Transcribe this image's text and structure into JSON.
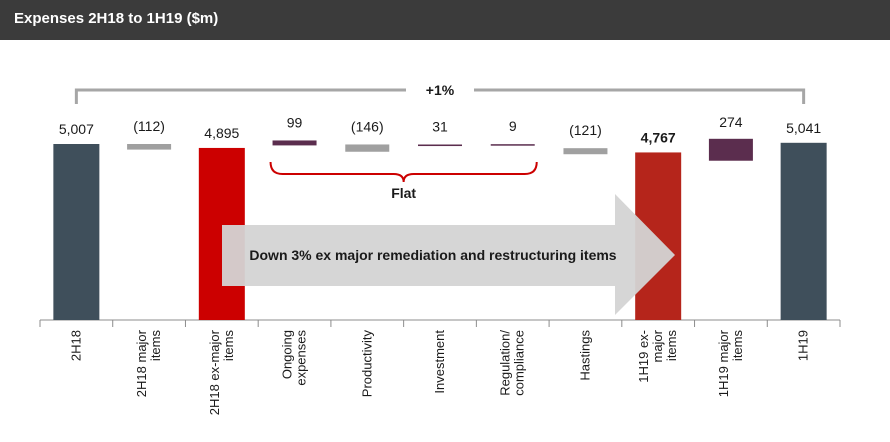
{
  "title": "Expenses 2H18 to 1H19 ($m)",
  "chart_data": {
    "type": "bar",
    "subtype": "waterfall",
    "categories": [
      "2H18",
      "2H18 major items",
      "2H18 ex-major items",
      "Ongoing expenses",
      "Productivity",
      "Investment",
      "Regulation/ compliance",
      "Hastings",
      "1H19 ex-major items",
      "1H19 major items",
      "1H19"
    ],
    "tick_lines": [
      [
        "2H18"
      ],
      [
        "2H18 major",
        "items"
      ],
      [
        "2H18 ex-major",
        "items"
      ],
      [
        "Ongoing",
        "expenses"
      ],
      [
        "Productivity"
      ],
      [
        "Investment"
      ],
      [
        "Regulation/",
        "compliance"
      ],
      [
        "Hastings"
      ],
      [
        "1H19 ex-",
        "major",
        "items"
      ],
      [
        "1H19 major",
        "items"
      ],
      [
        "1H19"
      ]
    ],
    "values": [
      5007,
      -112,
      4895,
      99,
      -146,
      31,
      9,
      -121,
      4767,
      274,
      5041
    ],
    "data_labels": [
      "5,007",
      "(112)",
      "4,895",
      "99",
      "(146)",
      "31",
      "9",
      "(121)",
      "4,767",
      "274",
      "5,041"
    ],
    "bold_labels": [
      false,
      false,
      false,
      false,
      false,
      false,
      false,
      false,
      true,
      false,
      false
    ],
    "kinds": [
      "total",
      "delta",
      "total",
      "delta",
      "delta",
      "delta",
      "delta",
      "delta",
      "total",
      "delta",
      "total"
    ],
    "colors": [
      "#3f4f5b",
      "#a0a0a0",
      "#cc0000",
      "#5b2d4e",
      "#a0a0a0",
      "#5b2d4e",
      "#5b2d4e",
      "#a0a0a0",
      "#b5251b",
      "#5b2d4e",
      "#3f4f5b"
    ],
    "ylim": [
      0,
      5200
    ],
    "xlabel": "",
    "ylabel": "",
    "annotations": {
      "top_bracket_label": "+1%",
      "flat_bracket_label": "Flat",
      "arrow_text": "Down 3% ex major remediation and restructuring items"
    }
  }
}
